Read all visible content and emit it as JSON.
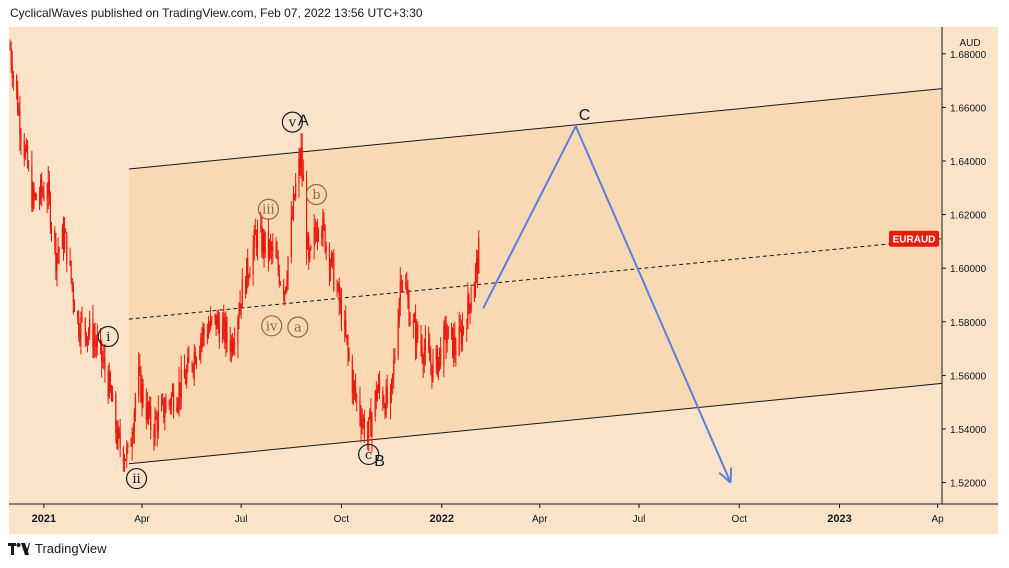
{
  "header": {
    "text": "CyclicalWaves published on TradingView.com, Feb 07, 2022 13:56 UTC+3:30"
  },
  "footer": {
    "brand": "TradingView"
  },
  "chart_data": {
    "type": "line",
    "symbol": "EURAUD",
    "currency": "AUD",
    "xlabel": "",
    "ylabel": "",
    "ylim": [
      1.512,
      1.69
    ],
    "x_range": [
      "2020-11-30",
      "2023-04-05"
    ],
    "x_ticks": [
      {
        "date": "2021-01-01",
        "label": "2021"
      },
      {
        "date": "2021-04-01",
        "label": "Apr"
      },
      {
        "date": "2021-07-01",
        "label": "Jul"
      },
      {
        "date": "2021-10-01",
        "label": "Oct"
      },
      {
        "date": "2022-01-01",
        "label": "2022"
      },
      {
        "date": "2022-04-01",
        "label": "Apr"
      },
      {
        "date": "2022-07-01",
        "label": "Jul"
      },
      {
        "date": "2022-10-01",
        "label": "Oct"
      },
      {
        "date": "2023-01-01",
        "label": "2023"
      },
      {
        "date": "2023-04-01",
        "label": "Ap"
      }
    ],
    "y_ticks": [
      1.52,
      1.54,
      1.56,
      1.58,
      1.6,
      1.62,
      1.64,
      1.66,
      1.68
    ],
    "last_price": 1.611,
    "price_path": [
      [
        "2020-12-01",
        1.682
      ],
      [
        "2020-12-10",
        1.655
      ],
      [
        "2020-12-22",
        1.625
      ],
      [
        "2021-01-04",
        1.63
      ],
      [
        "2021-01-12",
        1.605
      ],
      [
        "2021-01-20",
        1.612
      ],
      [
        "2021-02-01",
        1.58
      ],
      [
        "2021-02-15",
        1.575
      ],
      [
        "2021-02-28",
        1.56
      ],
      [
        "2021-03-10",
        1.535
      ],
      [
        "2021-03-20",
        1.529
      ],
      [
        "2021-03-28",
        1.56
      ],
      [
        "2021-04-10",
        1.54
      ],
      [
        "2021-04-25",
        1.55
      ],
      [
        "2021-05-10",
        1.558
      ],
      [
        "2021-05-25",
        1.575
      ],
      [
        "2021-06-08",
        1.58
      ],
      [
        "2021-06-22",
        1.572
      ],
      [
        "2021-07-01",
        1.59
      ],
      [
        "2021-07-15",
        1.612
      ],
      [
        "2021-07-30",
        1.605
      ],
      [
        "2021-08-10",
        1.593
      ],
      [
        "2021-08-20",
        1.63
      ],
      [
        "2021-08-25",
        1.642
      ],
      [
        "2021-09-01",
        1.6
      ],
      [
        "2021-09-10",
        1.62
      ],
      [
        "2021-09-20",
        1.605
      ],
      [
        "2021-10-01",
        1.583
      ],
      [
        "2021-10-12",
        1.555
      ],
      [
        "2021-10-25",
        1.537
      ],
      [
        "2021-11-03",
        1.555
      ],
      [
        "2021-11-15",
        1.548
      ],
      [
        "2021-11-25",
        1.6
      ],
      [
        "2021-12-05",
        1.578
      ],
      [
        "2021-12-15",
        1.57
      ],
      [
        "2021-12-25",
        1.562
      ],
      [
        "2022-01-05",
        1.575
      ],
      [
        "2022-01-15",
        1.57
      ],
      [
        "2022-01-25",
        1.585
      ],
      [
        "2022-02-02",
        1.6
      ],
      [
        "2022-02-06",
        1.611
      ]
    ],
    "channel": {
      "upper": [
        [
          "2021-03-20",
          1.637
        ],
        [
          "2023-04-05",
          1.667
        ]
      ],
      "middle": [
        [
          "2021-03-20",
          1.581
        ],
        [
          "2023-04-05",
          1.611
        ]
      ],
      "lower": [
        [
          "2021-03-20",
          1.527
        ],
        [
          "2023-04-05",
          1.557
        ]
      ]
    },
    "projection": [
      [
        "2022-02-08",
        1.585
      ],
      [
        "2022-05-04",
        1.653
      ],
      [
        "2022-09-23",
        1.52
      ]
    ],
    "wave_labels": [
      {
        "text": "i",
        "date": "2021-03-01",
        "price": 1.5745,
        "circled": true
      },
      {
        "text": "ii",
        "date": "2021-03-27",
        "price": 1.5215,
        "circled": true
      },
      {
        "text": "iii",
        "date": "2021-07-26",
        "price": 1.622,
        "circled": true
      },
      {
        "text": "iv",
        "date": "2021-07-29",
        "price": 1.5785,
        "circled": true
      },
      {
        "text": "a",
        "date": "2021-08-22",
        "price": 1.578,
        "circled": true
      },
      {
        "text": "v",
        "date": "2021-08-17",
        "price": 1.6545,
        "circled": true
      },
      {
        "text": "A",
        "date": "2021-08-27",
        "price": 1.6555,
        "circled": false
      },
      {
        "text": "b",
        "date": "2021-09-08",
        "price": 1.6275,
        "circled": true
      },
      {
        "text": "c",
        "date": "2021-10-26",
        "price": 1.5305,
        "circled": true
      },
      {
        "text": "B",
        "date": "2021-11-05",
        "price": 1.5285,
        "circled": false
      },
      {
        "text": "C",
        "date": "2022-05-12",
        "price": 1.6575,
        "circled": false
      }
    ],
    "colors": {
      "background": "#fbe3ca",
      "channel_fill": "#f9d9b4",
      "candle": "#e8180c",
      "projection": "#5b7fe0",
      "price_tag": "#e81c0c",
      "label_circle": "#8a6a3e",
      "label_black": "#131722"
    }
  }
}
